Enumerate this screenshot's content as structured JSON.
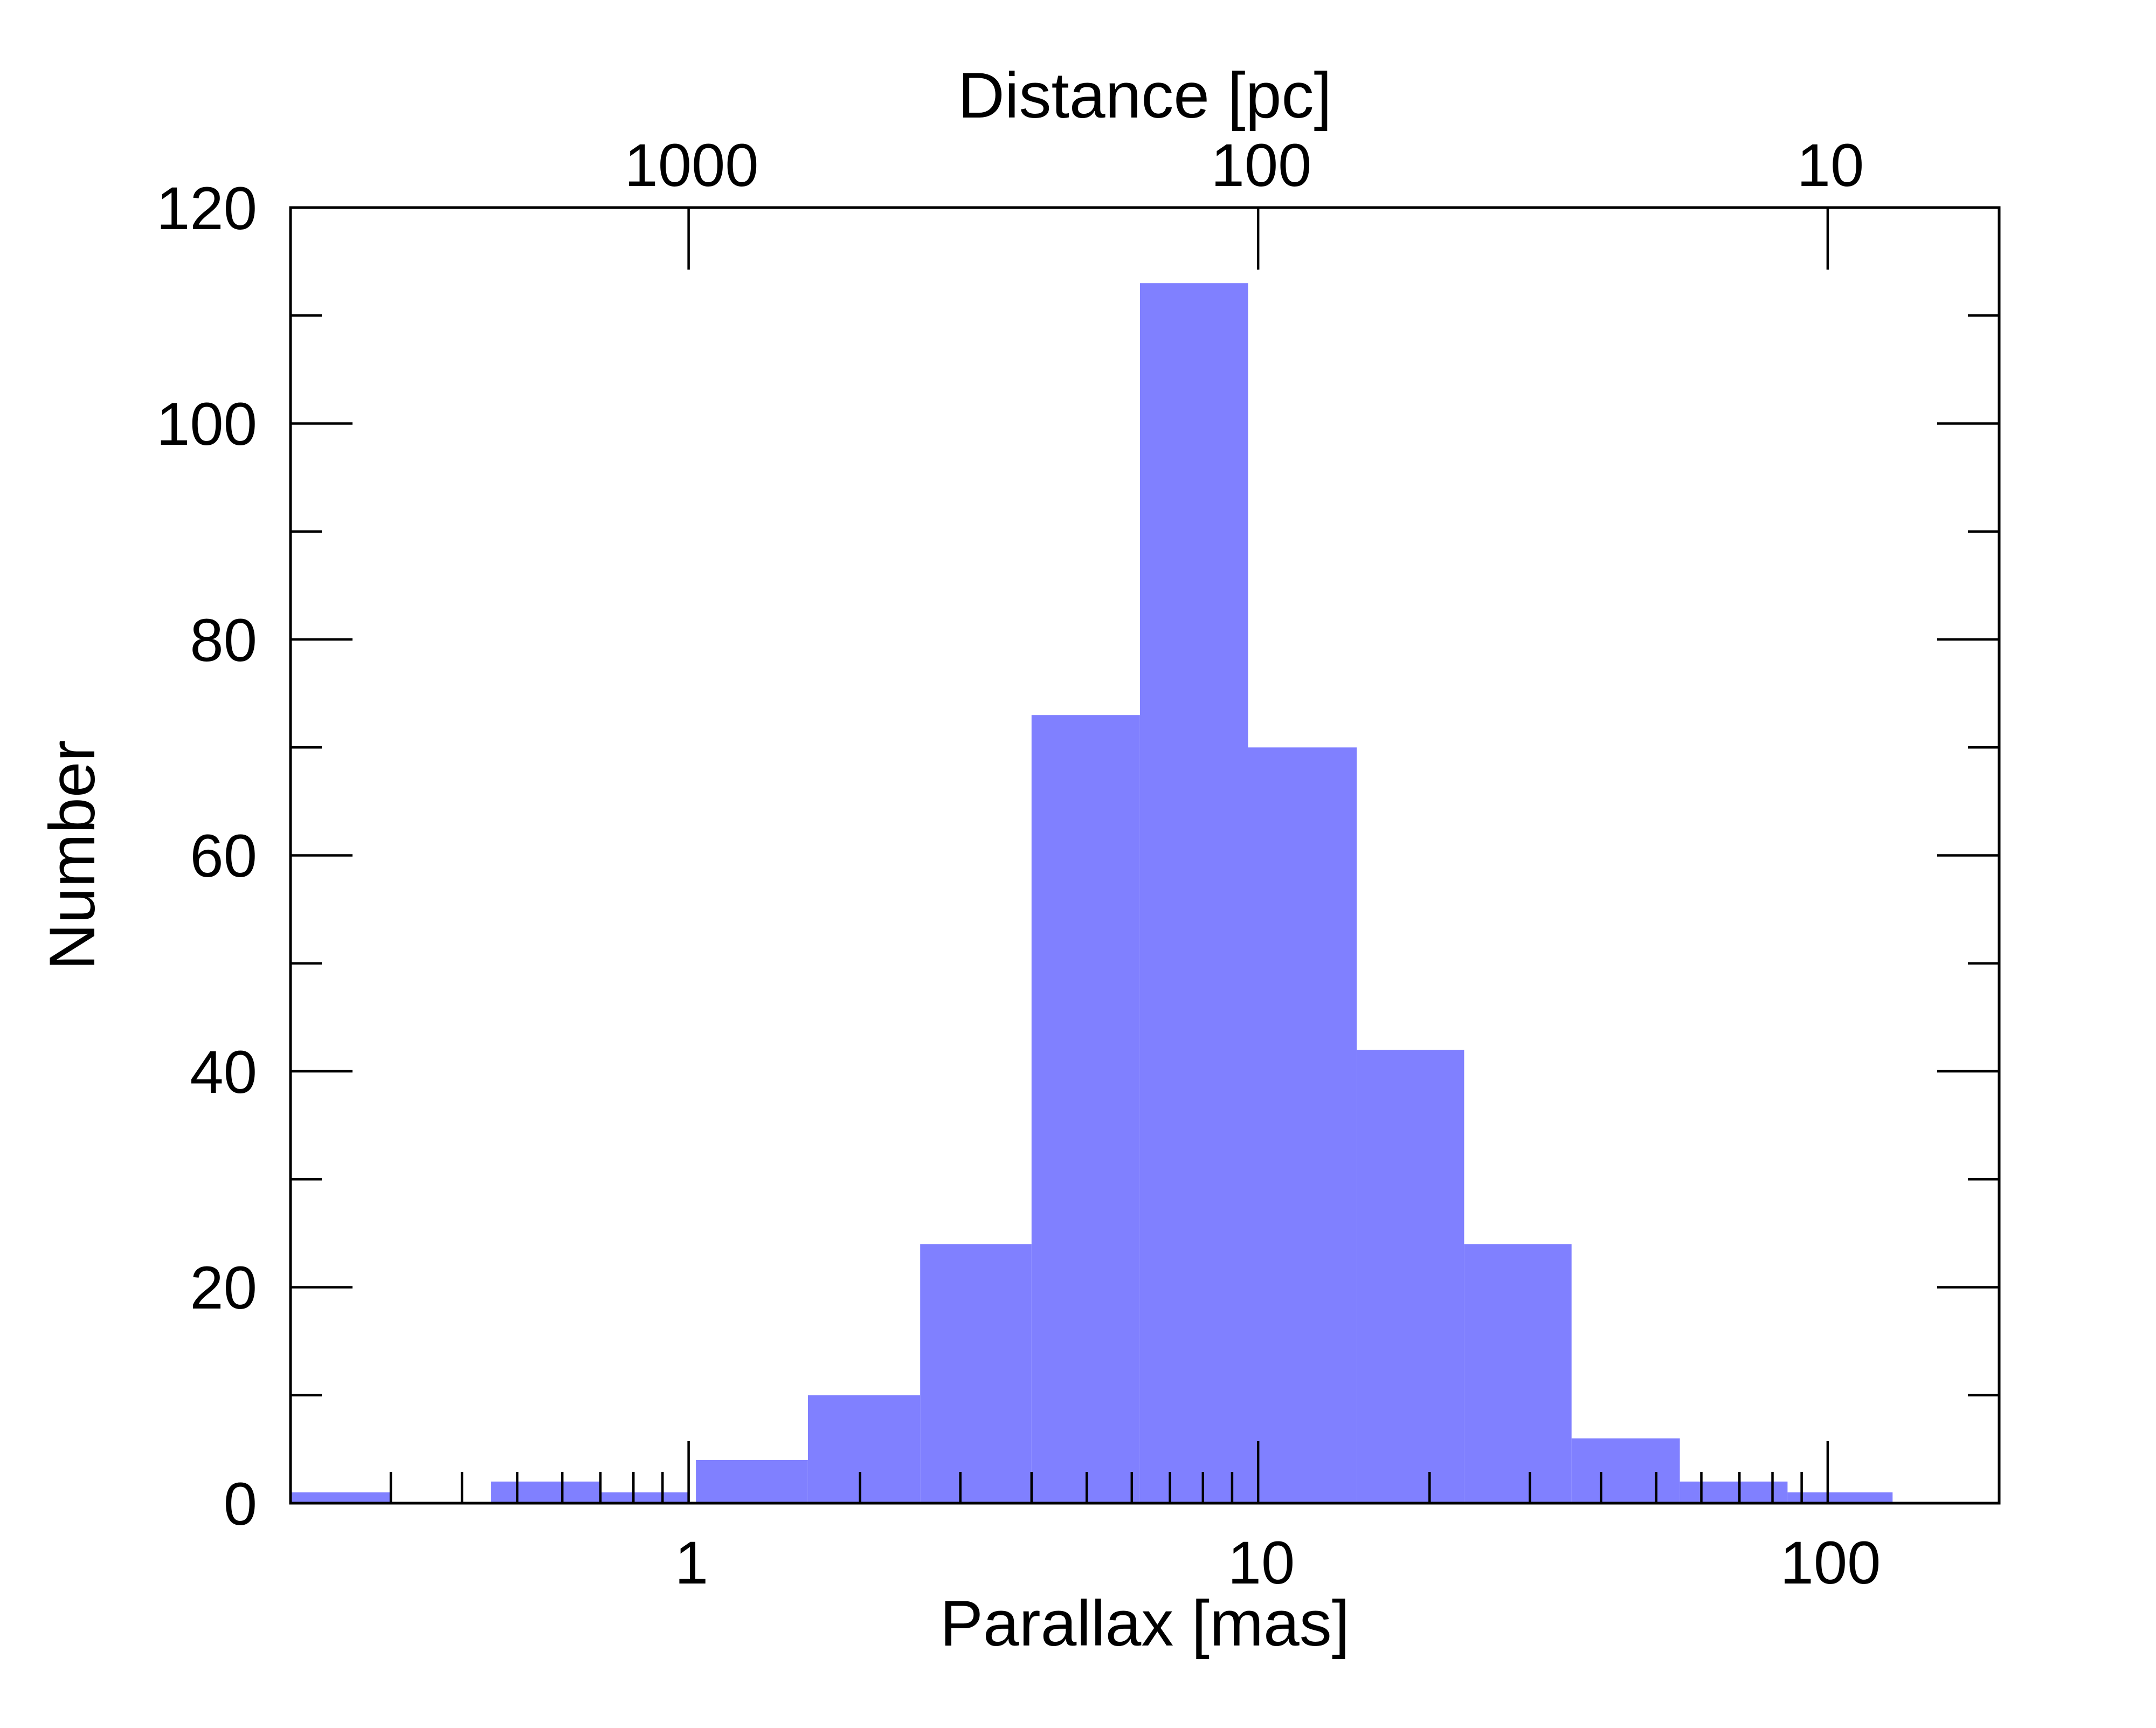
{
  "chart_data": {
    "type": "bar",
    "x_scale": "log",
    "xlabel": "Parallax [mas]",
    "ylabel": "Number",
    "top_xlabel": "Distance [pc]",
    "xlim": [
      0.2,
      200
    ],
    "ylim": [
      0,
      120
    ],
    "x_tick_labels": [
      "1",
      "10",
      "100"
    ],
    "top_tick_labels": [
      "1000",
      "100",
      "10"
    ],
    "y_tick_labels": [
      "0",
      "20",
      "40",
      "60",
      "80",
      "100",
      "120"
    ],
    "grid": false,
    "legend": "none",
    "bar_color": "#8080ff",
    "bins": [
      {
        "x0": 0.2,
        "x1": 0.3,
        "count": 1
      },
      {
        "x0": 0.45,
        "x1": 0.7,
        "count": 2
      },
      {
        "x0": 0.7,
        "x1": 1.0,
        "count": 1
      },
      {
        "x0": 1.03,
        "x1": 1.62,
        "count": 4
      },
      {
        "x0": 1.62,
        "x1": 2.55,
        "count": 10
      },
      {
        "x0": 2.55,
        "x1": 4.0,
        "count": 24
      },
      {
        "x0": 4.0,
        "x1": 6.2,
        "count": 73
      },
      {
        "x0": 6.2,
        "x1": 9.6,
        "count": 113
      },
      {
        "x0": 9.6,
        "x1": 14.9,
        "count": 70
      },
      {
        "x0": 14.9,
        "x1": 23.0,
        "count": 42
      },
      {
        "x0": 23.0,
        "x1": 35.5,
        "count": 24
      },
      {
        "x0": 35.5,
        "x1": 55.0,
        "count": 6
      },
      {
        "x0": 55.0,
        "x1": 85.0,
        "count": 2
      },
      {
        "x0": 85.0,
        "x1": 130.0,
        "count": 1
      }
    ]
  }
}
